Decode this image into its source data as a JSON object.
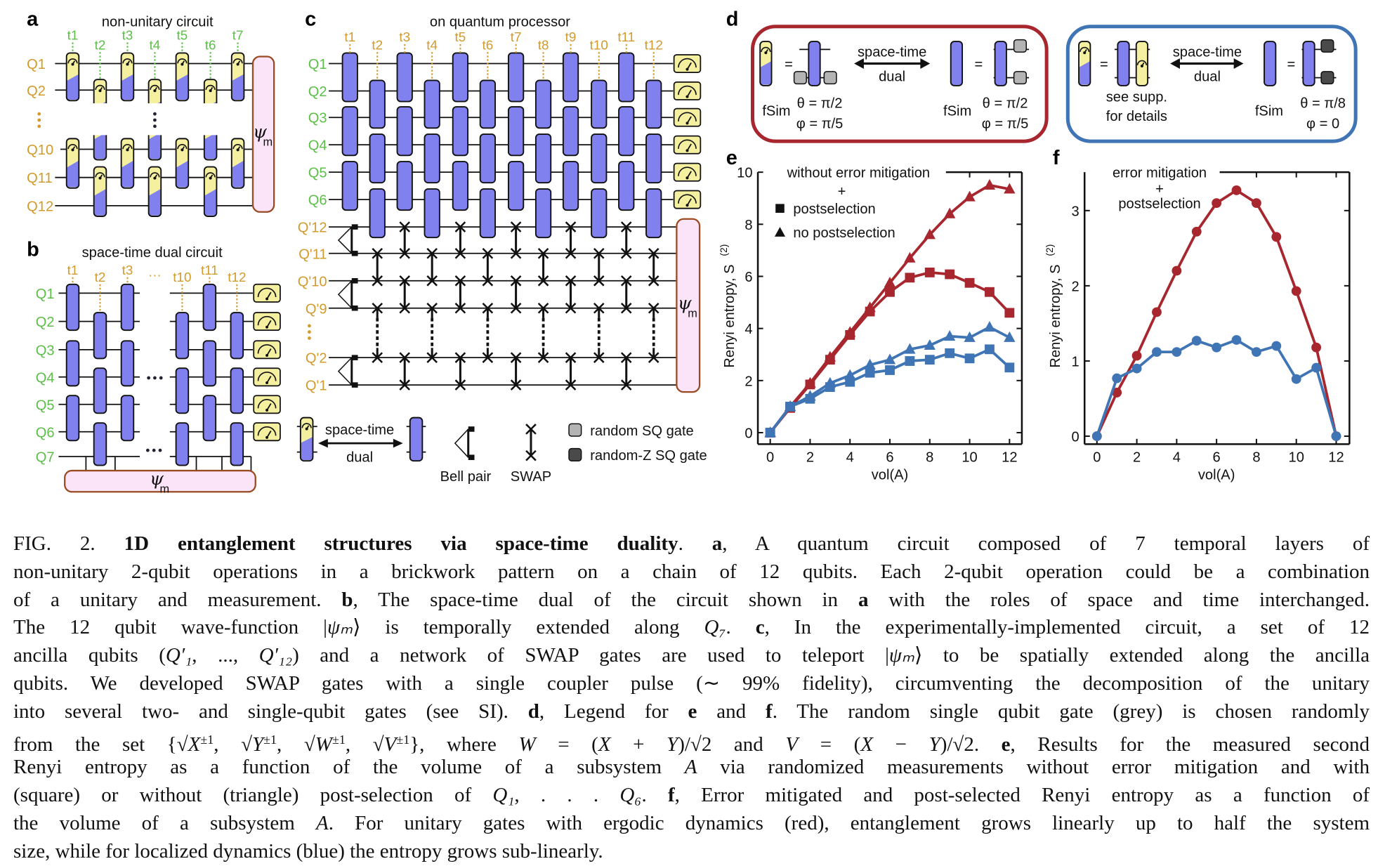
{
  "colors": {
    "red": "#a8262e",
    "blue": "#3f74b5",
    "gate_purple": "#8080ee",
    "meter_yellow": "#f5f0a0",
    "state_pink": "#fbe4f8",
    "label_green": "#5cbf48",
    "label_orange": "#d39a2c",
    "sq_gray": "#b4b4b4",
    "zsq_dark": "#4a4a4a"
  },
  "panel_a": {
    "letter": "a",
    "title": "non-unitary circuit",
    "time_labels": [
      "t1",
      "t2",
      "t3",
      "t4",
      "t5",
      "t6",
      "t7"
    ],
    "qubit_labels": [
      "Q1",
      "Q2",
      "Q10",
      "Q11",
      "Q12"
    ],
    "state_label": "ψ",
    "state_sub": "m"
  },
  "panel_b": {
    "letter": "b",
    "title": "space-time dual circuit",
    "time_labels": [
      "t1",
      "t2",
      "t3",
      "t10",
      "t11",
      "t12"
    ],
    "ellipsis": "···",
    "qubit_labels": [
      "Q1",
      "Q2",
      "Q3",
      "Q4",
      "Q5",
      "Q6",
      "Q7"
    ],
    "state_label": "ψ",
    "state_sub": "m"
  },
  "panel_c": {
    "letter": "c",
    "title": "on quantum processor",
    "time_labels": [
      "t1",
      "t2",
      "t3",
      "t4",
      "t5",
      "t6",
      "t7",
      "t8",
      "t9",
      "t10",
      "t11",
      "t12"
    ],
    "qubit_labels": [
      "Q1",
      "Q2",
      "Q3",
      "Q4",
      "Q5",
      "Q6",
      "Q'12",
      "Q'11",
      "Q'10",
      "Q'9",
      "Q'2",
      "Q'1"
    ],
    "state_label": "ψ",
    "state_sub": "m",
    "legend": {
      "dual_top": "space-time",
      "dual_bottom": "dual",
      "bell": "Bell pair",
      "swap": "SWAP",
      "sq": "random SQ gate",
      "zsq": "random-Z SQ gate"
    }
  },
  "panel_d": {
    "letter": "d",
    "red": {
      "dual_top": "space-time",
      "dual_bottom": "dual",
      "eq": "=",
      "fsim_left": "fSim",
      "theta_left": "θ = π/2",
      "phi_left": "φ = π/5",
      "fsim_right": "fSim",
      "theta_right": "θ = π/2",
      "phi_right": "φ = π/5"
    },
    "blue": {
      "dual_top": "space-time",
      "dual_bottom": "dual",
      "eq": "=",
      "note_1": "see supp.",
      "note_2": "for details",
      "fsim": "fSim",
      "theta": "θ = π/8",
      "phi": "φ = 0"
    }
  },
  "chart_data": [
    {
      "panel": "e",
      "type": "line",
      "x": [
        0,
        1,
        2,
        3,
        4,
        5,
        6,
        7,
        8,
        9,
        10,
        11,
        12
      ],
      "xlabel": "vol(A)",
      "ylabel": "Renyi entropy, S",
      "ylabel_sup": "(2)",
      "xlim": [
        0,
        12
      ],
      "ylim": [
        0,
        10
      ],
      "xticks": [
        "0",
        "2",
        "4",
        "6",
        "8",
        "10",
        "12"
      ],
      "yticks": [
        "0",
        "2",
        "4",
        "6",
        "8",
        "10"
      ],
      "grid": false,
      "legend_title": "without error mitigation",
      "legend_plus": "+",
      "legend": [
        {
          "label": "postselection",
          "marker": "square"
        },
        {
          "label": "no postselection",
          "marker": "triangle"
        }
      ],
      "legend_placement": "top-left",
      "series": [
        {
          "color": "#a8262e",
          "marker": "triangle",
          "values": [
            0,
            1.0,
            1.9,
            2.9,
            3.85,
            4.8,
            5.75,
            6.7,
            7.6,
            8.4,
            9.05,
            9.5,
            9.35
          ]
        },
        {
          "color": "#a8262e",
          "marker": "square",
          "values": [
            0,
            0.95,
            1.85,
            2.8,
            3.75,
            4.65,
            5.4,
            5.95,
            6.15,
            6.08,
            5.75,
            5.4,
            4.6
          ]
        },
        {
          "color": "#3f74b5",
          "marker": "triangle",
          "values": [
            0,
            1.0,
            1.4,
            1.9,
            2.2,
            2.6,
            2.8,
            3.2,
            3.35,
            3.7,
            3.65,
            4.05,
            3.65
          ]
        },
        {
          "color": "#3f74b5",
          "marker": "square",
          "values": [
            0,
            1.0,
            1.3,
            1.75,
            1.95,
            2.3,
            2.4,
            2.75,
            2.8,
            3.05,
            2.85,
            3.2,
            2.5
          ]
        }
      ]
    },
    {
      "panel": "f",
      "type": "line",
      "x": [
        0,
        1,
        2,
        3,
        4,
        5,
        6,
        7,
        8,
        9,
        10,
        11,
        12
      ],
      "xlabel": "vol(A)",
      "ylabel": "Renyi entropy, S",
      "ylabel_sup": "(2)",
      "xlim": [
        0,
        12
      ],
      "ylim": [
        0,
        3.5
      ],
      "xticks": [
        "0",
        "2",
        "4",
        "6",
        "8",
        "10",
        "12"
      ],
      "yticks": [
        "0",
        "1",
        "2",
        "3"
      ],
      "grid": false,
      "legend_title": "error mitigation",
      "legend_plus": "+",
      "legend_sub": "postselection",
      "series": [
        {
          "color": "#a8262e",
          "marker": "circle",
          "values": [
            0,
            0.58,
            1.07,
            1.65,
            2.2,
            2.72,
            3.1,
            3.27,
            3.1,
            2.65,
            1.93,
            1.18,
            0
          ]
        },
        {
          "color": "#3f74b5",
          "marker": "circle",
          "values": [
            0,
            0.77,
            0.9,
            1.12,
            1.12,
            1.27,
            1.18,
            1.28,
            1.12,
            1.2,
            0.76,
            0.91,
            0
          ]
        }
      ]
    }
  ],
  "caption": {
    "lines": [
      [
        {
          "t": "FIG. 2. "
        },
        {
          "t": "1D entanglement structures via space-time duality",
          "b": 1
        },
        {
          "t": ". "
        },
        {
          "t": "a",
          "b": 1
        },
        {
          "t": ", A quantum circuit composed of 7 temporal layers of"
        }
      ],
      [
        {
          "t": "non-unitary 2-qubit operations in a brickwork pattern on a chain of 12 qubits. Each 2-qubit operation could be a combination"
        }
      ],
      [
        {
          "t": "of a unitary and measurement. "
        },
        {
          "t": "b",
          "b": 1
        },
        {
          "t": ", The space-time dual of the circuit shown in "
        },
        {
          "t": "a",
          "b": 1
        },
        {
          "t": " with the roles of space and time interchanged."
        }
      ],
      [
        {
          "t": "The 12 qubit wave-function |"
        },
        {
          "t": "ψₘ",
          "i": 1
        },
        {
          "t": "⟩ is temporally extended along "
        },
        {
          "t": "Q₇",
          "i": 1
        },
        {
          "t": ". "
        },
        {
          "t": "c",
          "b": 1
        },
        {
          "t": ", In the experimentally-implemented circuit, a set of 12"
        }
      ],
      [
        {
          "t": "ancilla qubits ("
        },
        {
          "t": "Q′₁",
          "i": 1
        },
        {
          "t": ", ..., "
        },
        {
          "t": "Q′₁₂",
          "i": 1
        },
        {
          "t": ") and a network of SWAP gates are used to teleport |"
        },
        {
          "t": "ψₘ",
          "i": 1
        },
        {
          "t": "⟩ to be spatially extended along the ancilla"
        }
      ],
      [
        {
          "t": "qubits. We developed SWAP gates with a single coupler pulse (∼ 99% fidelity), circumventing the decomposition of the unitary"
        }
      ],
      [
        {
          "t": "into several two- and single-qubit gates (see SI). "
        },
        {
          "t": "d",
          "b": 1
        },
        {
          "t": ", Legend for "
        },
        {
          "t": "e",
          "b": 1
        },
        {
          "t": " and "
        },
        {
          "t": "f",
          "b": 1
        },
        {
          "t": ". The random single qubit gate (grey) is chosen randomly"
        }
      ],
      [
        {
          "t": "from the set {√"
        },
        {
          "t": "X",
          "i": 1
        },
        {
          "t": "±1",
          "sup": 1
        },
        {
          "t": ", √"
        },
        {
          "t": "Y",
          "i": 1
        },
        {
          "t": "±1",
          "sup": 1
        },
        {
          "t": ", √"
        },
        {
          "t": "W",
          "i": 1
        },
        {
          "t": "±1",
          "sup": 1
        },
        {
          "t": ", √"
        },
        {
          "t": "V",
          "i": 1
        },
        {
          "t": "±1",
          "sup": 1
        },
        {
          "t": "}, where "
        },
        {
          "t": "W",
          "i": 1
        },
        {
          "t": " = ("
        },
        {
          "t": "X",
          "i": 1
        },
        {
          "t": " + "
        },
        {
          "t": "Y",
          "i": 1
        },
        {
          "t": ")/√2 and "
        },
        {
          "t": "V",
          "i": 1
        },
        {
          "t": " = ("
        },
        {
          "t": "X",
          "i": 1
        },
        {
          "t": " − "
        },
        {
          "t": "Y",
          "i": 1
        },
        {
          "t": ")/√2. "
        },
        {
          "t": "e",
          "b": 1
        },
        {
          "t": ", Results for the measured second"
        }
      ],
      [
        {
          "t": "Renyi entropy as a function of the volume of a subsystem "
        },
        {
          "t": "A",
          "i": 1
        },
        {
          "t": " via randomized measurements without error mitigation and with"
        }
      ],
      [
        {
          "t": "(square) or without (triangle) post-selection of "
        },
        {
          "t": "Q₁",
          "i": 1
        },
        {
          "t": ", . . . "
        },
        {
          "t": "Q₆",
          "i": 1
        },
        {
          "t": ". "
        },
        {
          "t": "f",
          "b": 1
        },
        {
          "t": ", Error mitigated and post-selected Renyi entropy as a function of"
        }
      ],
      [
        {
          "t": "the volume of a subsystem "
        },
        {
          "t": "A",
          "i": 1
        },
        {
          "t": ". For unitary gates with ergodic dynamics (red), entanglement grows linearly up to half the system"
        }
      ],
      [
        {
          "t": "size, while for localized dynamics (blue) the entropy grows sub-linearly."
        }
      ]
    ]
  }
}
